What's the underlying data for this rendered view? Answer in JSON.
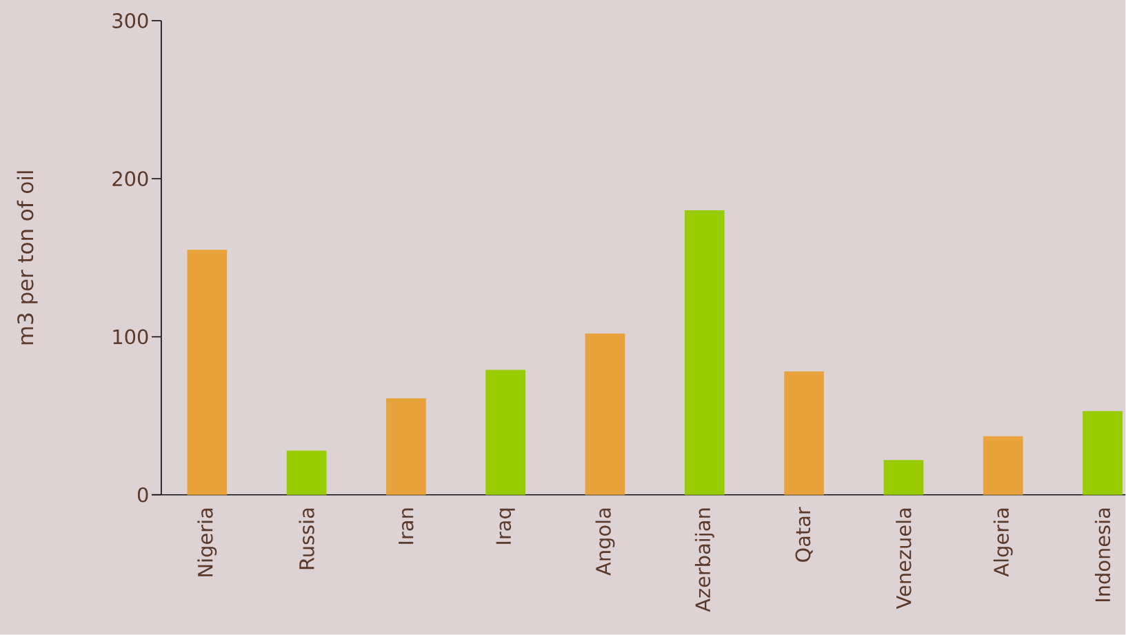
{
  "chart_data": {
    "type": "bar",
    "ylabel": "m3 per ton of oil",
    "categories": [
      "Nigeria",
      "Russia",
      "Iran",
      "Iraq",
      "Angola",
      "Azerbaijan",
      "Qatar",
      "Venezuela",
      "Algeria",
      "Indonesia"
    ],
    "values": [
      155,
      28,
      61,
      79,
      102,
      180,
      78,
      22,
      37,
      53
    ],
    "colors": [
      "#e8a33d",
      "#99cc00",
      "#e8a33d",
      "#99cc00",
      "#e8a33d",
      "#99cc00",
      "#e8a33d",
      "#99cc00",
      "#e8a33d",
      "#99cc00"
    ],
    "ylim": [
      0,
      300
    ],
    "yticks": [
      0,
      100,
      200,
      300
    ]
  }
}
